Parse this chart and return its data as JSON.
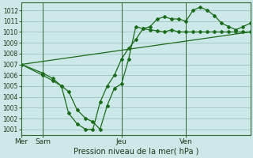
{
  "bg_color": "#cce8e8",
  "grid_color": "#99bbbb",
  "line_color": "#1a6b1a",
  "title": "Pression niveau de la mer( hPa )",
  "day_labels": [
    "Mer",
    "Sam",
    "Jeu",
    "Ven"
  ],
  "day_positions": [
    0,
    1.5,
    7,
    11.5
  ],
  "ylim": [
    1000.5,
    1012.7
  ],
  "yticks": [
    1001,
    1002,
    1003,
    1004,
    1005,
    1006,
    1007,
    1008,
    1009,
    1010,
    1011,
    1012
  ],
  "xlim": [
    0,
    16
  ],
  "vline_positions": [
    0,
    1.5,
    7,
    11.5
  ],
  "series_zigzag_x": [
    0,
    1.5,
    2.2,
    2.8,
    3.3,
    3.9,
    4.5,
    5.0,
    5.5,
    6.0,
    6.5,
    7.0,
    7.5,
    8.0,
    8.5,
    9.0,
    9.5,
    10.0,
    10.5,
    11.0,
    11.5,
    12.0,
    12.5,
    13.0,
    13.5,
    14.0,
    14.5,
    15.0,
    15.5,
    16.0
  ],
  "series_zigzag_y": [
    1007.0,
    1006.0,
    1005.5,
    1005.0,
    1004.5,
    1002.8,
    1002.0,
    1001.7,
    1001.0,
    1003.2,
    1004.8,
    1005.2,
    1007.5,
    1010.5,
    1010.3,
    1010.2,
    1010.1,
    1010.0,
    1010.2,
    1010.0,
    1010.0,
    1010.0,
    1010.0,
    1010.0,
    1010.0,
    1010.0,
    1010.0,
    1010.0,
    1010.0,
    1010.0
  ],
  "series_main_x": [
    0,
    1.5,
    2.2,
    2.8,
    3.3,
    3.9,
    4.5,
    5.0,
    5.5,
    6.0,
    6.5,
    7.0,
    7.5,
    8.0,
    8.5,
    9.0,
    9.5,
    10.0,
    10.5,
    11.0,
    11.5,
    12.0,
    12.5,
    13.0,
    13.5,
    14.0,
    14.5,
    15.0,
    15.5,
    16.0
  ],
  "series_main_y": [
    1007.0,
    1006.2,
    1005.7,
    1005.0,
    1002.5,
    1001.5,
    1001.0,
    1001.0,
    1003.5,
    1005.0,
    1006.0,
    1007.5,
    1008.5,
    1009.3,
    1010.3,
    1010.5,
    1011.2,
    1011.4,
    1011.2,
    1011.2,
    1011.0,
    1012.0,
    1012.3,
    1012.0,
    1011.5,
    1010.8,
    1010.5,
    1010.2,
    1010.5,
    1010.8
  ],
  "series_trend_x": [
    0,
    16
  ],
  "series_trend_y": [
    1007.0,
    1010.0
  ]
}
